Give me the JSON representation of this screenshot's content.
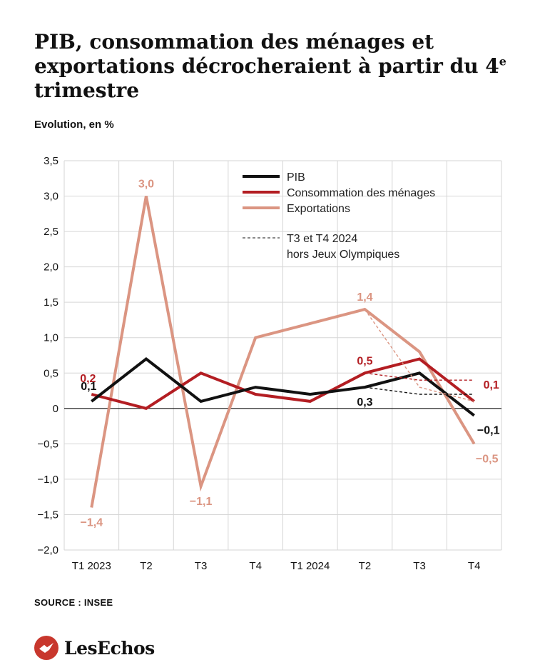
{
  "header": {
    "title_main": "PIB, consommation des ménages et exportations décrocheraient à partir du 4",
    "title_sup": "e",
    "title_end": " trimestre",
    "subtitle": "Evolution, en %"
  },
  "footer": {
    "source": "SOURCE : INSEE",
    "logo_text": "LesEchos"
  },
  "colors": {
    "pib": "#111111",
    "conso": "#b31d22",
    "exports": "#db9582",
    "grid": "#d6d6d6",
    "axis": "#111111"
  },
  "chart_data": {
    "type": "line",
    "categories": [
      "T1 2023",
      "T2",
      "T3",
      "T4",
      "T1 2024",
      "T2",
      "T3",
      "T4"
    ],
    "yticks": [
      "3,5",
      "3,0",
      "2,5",
      "2,0",
      "1,5",
      "1,0",
      "0,5",
      "0",
      "−0,5",
      "−1,0",
      "−1,5",
      "−2,0"
    ],
    "ylim": [
      -2.0,
      3.5
    ],
    "grid": true,
    "legend_position": "top-right",
    "series": [
      {
        "key": "pib",
        "name": "PIB",
        "values": [
          0.1,
          0.7,
          0.1,
          0.3,
          0.2,
          0.3,
          0.5,
          -0.1
        ]
      },
      {
        "key": "conso",
        "name": "Consommation des ménages",
        "values": [
          0.2,
          0.0,
          0.5,
          0.2,
          0.1,
          0.5,
          0.7,
          0.1
        ]
      },
      {
        "key": "exports",
        "name": "Exportations",
        "values": [
          -1.4,
          3.0,
          -1.1,
          1.0,
          1.2,
          1.4,
          0.8,
          -0.5
        ]
      }
    ],
    "dashed_series": [
      {
        "key": "pib",
        "points": [
          [
            5,
            0.3
          ],
          [
            6,
            0.2
          ],
          [
            7,
            0.2
          ]
        ]
      },
      {
        "key": "conso",
        "points": [
          [
            5,
            0.5
          ],
          [
            6,
            0.4
          ],
          [
            7,
            0.4
          ]
        ]
      },
      {
        "key": "exports",
        "points": [
          [
            5,
            1.4
          ],
          [
            6,
            0.3
          ],
          [
            7,
            0.1
          ]
        ]
      }
    ],
    "dashed_legend": [
      "T3 et T4 2024",
      "hors Jeux Olympiques"
    ],
    "data_labels": [
      {
        "key": "exports",
        "i": 0,
        "v": -1.4,
        "text": "−1,4"
      },
      {
        "key": "exports",
        "i": 1,
        "v": 3.0,
        "text": "3,0"
      },
      {
        "key": "exports",
        "i": 2,
        "v": -1.1,
        "text": "−1,1"
      },
      {
        "key": "exports",
        "i": 5,
        "v": 1.4,
        "text": "1,4"
      },
      {
        "key": "exports",
        "i": 7,
        "v": -0.5,
        "text": "−0,5"
      },
      {
        "key": "conso",
        "i": 0,
        "v": 0.2,
        "text": "0,2"
      },
      {
        "key": "conso",
        "i": 5,
        "v": 0.5,
        "text": "0,5"
      },
      {
        "key": "conso",
        "i": 7,
        "v": 0.1,
        "text": "0,1"
      },
      {
        "key": "pib",
        "i": 0,
        "v": 0.1,
        "text": "0,1"
      },
      {
        "key": "pib",
        "i": 5,
        "v": 0.3,
        "text": "0,3"
      },
      {
        "key": "pib",
        "i": 7,
        "v": -0.1,
        "text": "−0,1"
      }
    ]
  }
}
